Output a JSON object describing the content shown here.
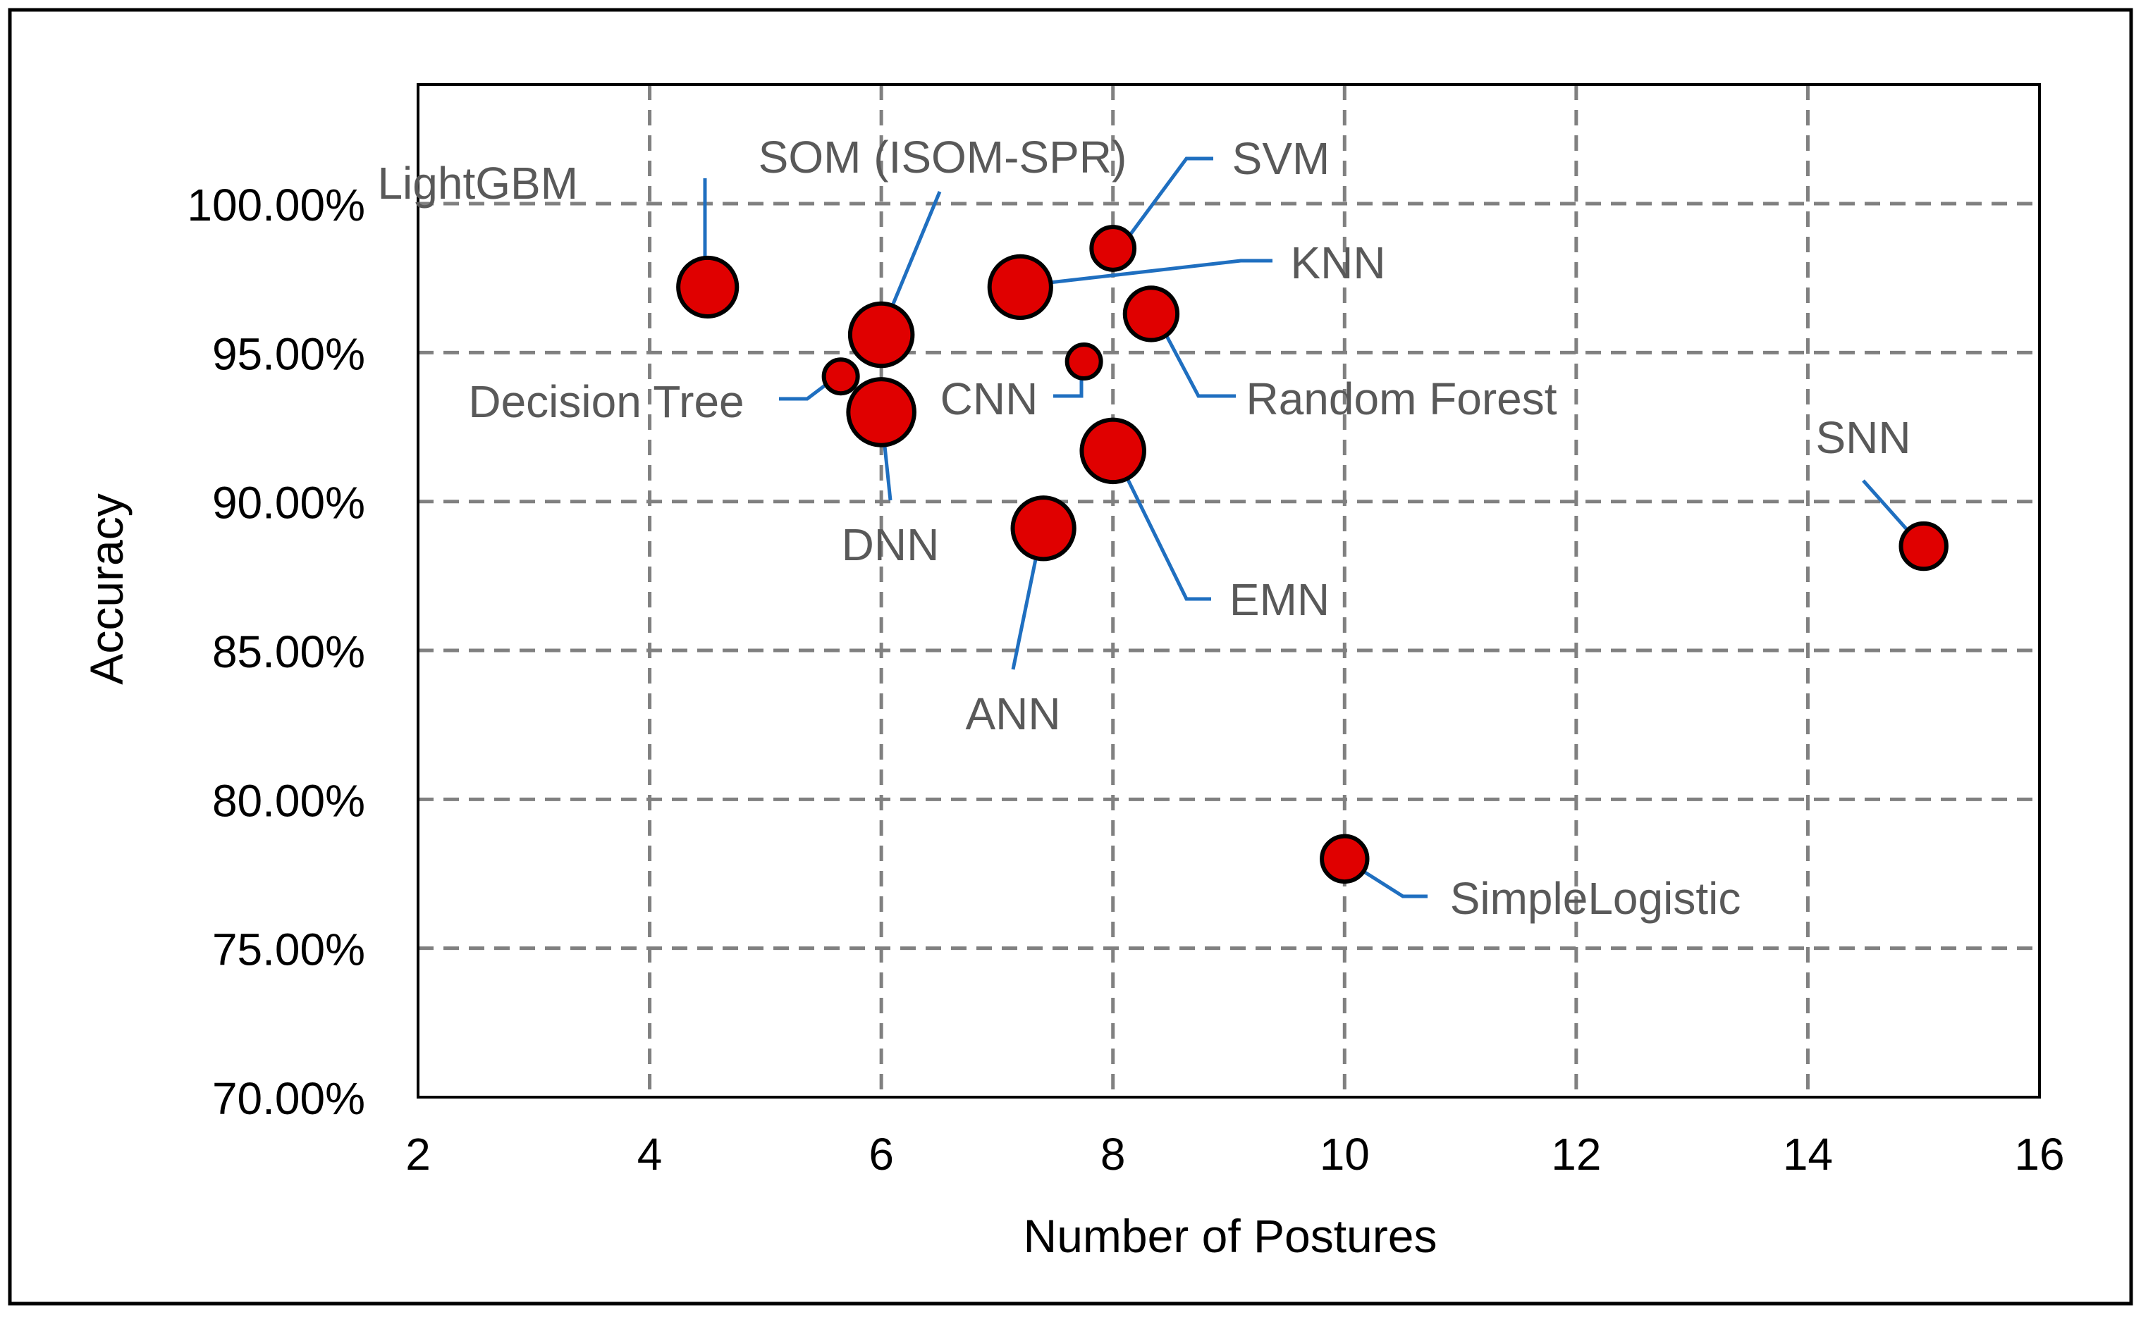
{
  "chart_data": {
    "type": "bubble",
    "title": "",
    "xlabel": "Number of Postures",
    "ylabel": "Accuracy",
    "xlim": [
      2,
      16
    ],
    "ylim": [
      0.7,
      1.04
    ],
    "x_ticks": [
      2,
      4,
      6,
      8,
      10,
      12,
      14,
      16
    ],
    "x_tick_labels": [
      "2",
      "4",
      "6",
      "8",
      "10",
      "12",
      "14",
      "16"
    ],
    "y_ticks": [
      0.7,
      0.75,
      0.8,
      0.85,
      0.9,
      0.95,
      1.0
    ],
    "y_tick_labels": [
      "70.00%",
      "75.00%",
      "80.00%",
      "85.00%",
      "90.00%",
      "95.00%",
      "100.00%"
    ],
    "grid": true,
    "colors": {
      "bubble_fill": "#e00000",
      "bubble_stroke": "#000000",
      "leader": "#1f6fc0",
      "label": "#595959",
      "grid": "#808080"
    },
    "points": [
      {
        "label": "LightGBM",
        "x": 4.5,
        "y": 0.972,
        "size": 3.0
      },
      {
        "label": "SOM (ISOM-SPR)",
        "x": 6.0,
        "y": 0.956,
        "size": 3.4
      },
      {
        "label": "Decision Tree",
        "x": 5.65,
        "y": 0.942,
        "size": 1.0
      },
      {
        "label": "DNN",
        "x": 6.0,
        "y": 0.93,
        "size": 3.8
      },
      {
        "label": "KNN",
        "x": 7.2,
        "y": 0.972,
        "size": 3.3
      },
      {
        "label": "SVM",
        "x": 8.0,
        "y": 0.985,
        "size": 1.6
      },
      {
        "label": "CNN",
        "x": 7.75,
        "y": 0.947,
        "size": 1.0
      },
      {
        "label": "Random Forest",
        "x": 8.33,
        "y": 0.963,
        "size": 2.4
      },
      {
        "label": "EMN",
        "x": 8.0,
        "y": 0.917,
        "size": 3.4
      },
      {
        "label": "ANN",
        "x": 7.4,
        "y": 0.891,
        "size": 3.3
      },
      {
        "label": "SNN",
        "x": 15.0,
        "y": 0.885,
        "size": 1.8
      },
      {
        "label": "SimpleLogistic",
        "x": 10.0,
        "y": 0.78,
        "size": 1.8
      }
    ]
  }
}
